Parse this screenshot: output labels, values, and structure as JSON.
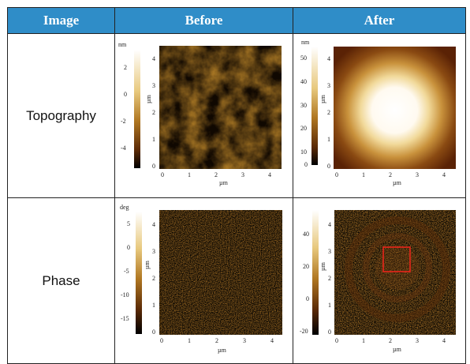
{
  "table": {
    "headers": [
      "Image",
      "Before",
      "After"
    ],
    "rows": [
      {
        "label": "Topography"
      },
      {
        "label": "Phase"
      }
    ]
  },
  "panels": {
    "topo_before": {
      "unit": "nm",
      "colorbar_ticks": [
        "2",
        "0",
        "-2",
        "-4"
      ],
      "axis_unit": "µm",
      "x_ticks": [
        "0",
        "1",
        "2",
        "3",
        "4"
      ],
      "y_ticks": [
        "0",
        "1",
        "2",
        "3",
        "4"
      ]
    },
    "topo_after": {
      "unit": "nm",
      "colorbar_ticks": [
        "50",
        "40",
        "30",
        "20",
        "10",
        "0"
      ],
      "axis_unit": "µm",
      "x_ticks": [
        "0",
        "1",
        "2",
        "3",
        "4"
      ],
      "y_ticks": [
        "0",
        "1",
        "2",
        "3",
        "4"
      ]
    },
    "phase_before": {
      "unit": "deg",
      "colorbar_ticks": [
        "5",
        "0",
        "-5",
        "-10",
        "-15"
      ],
      "axis_unit": "µm",
      "x_ticks": [
        "0",
        "1",
        "2",
        "3",
        "4"
      ],
      "y_ticks": [
        "0",
        "1",
        "2",
        "3",
        "4"
      ]
    },
    "phase_after": {
      "unit": "deg",
      "colorbar_ticks": [
        "40",
        "20",
        "0",
        "-20"
      ],
      "axis_unit": "µm",
      "x_ticks": [
        "0",
        "1",
        "2",
        "3",
        "4"
      ],
      "y_ticks": [
        "0",
        "1",
        "2",
        "3",
        "4"
      ]
    }
  },
  "colors": {
    "header_bg": "#2f8dc8",
    "header_text": "#ffffff",
    "highlight_box": "#e8251a"
  }
}
